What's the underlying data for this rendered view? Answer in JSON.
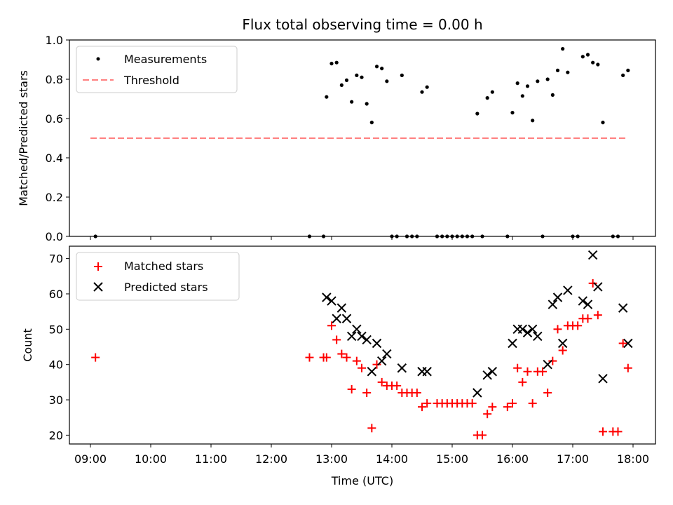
{
  "chart_data": [
    {
      "type": "scatter",
      "title": "Flux total observing time = 0.00 h",
      "xlabel": "",
      "ylabel": "Matched/Predicted stars",
      "ylim": [
        0,
        1.0
      ],
      "yticks": [
        "0.0",
        "0.2",
        "0.4",
        "0.6",
        "0.8",
        "1.0"
      ],
      "legend_position": "top-left",
      "series": [
        {
          "name": "Measurements",
          "marker": "dot",
          "color": "#000000",
          "points": [
            [
              "09:05",
              0.0
            ],
            [
              "12:38",
              0.0
            ],
            [
              "12:52",
              0.0
            ],
            [
              "12:55",
              0.71
            ],
            [
              "13:00",
              0.88
            ],
            [
              "13:05",
              0.885
            ],
            [
              "13:10",
              0.77
            ],
            [
              "13:15",
              0.795
            ],
            [
              "13:20",
              0.685
            ],
            [
              "13:25",
              0.82
            ],
            [
              "13:30",
              0.81
            ],
            [
              "13:35",
              0.675
            ],
            [
              "13:40",
              0.58
            ],
            [
              "13:45",
              0.865
            ],
            [
              "13:50",
              0.855
            ],
            [
              "13:55",
              0.79
            ],
            [
              "14:00",
              0.0
            ],
            [
              "14:05",
              0.0
            ],
            [
              "14:10",
              0.82
            ],
            [
              "14:15",
              0.0
            ],
            [
              "14:20",
              0.0
            ],
            [
              "14:25",
              0.0
            ],
            [
              "14:30",
              0.735
            ],
            [
              "14:35",
              0.76
            ],
            [
              "14:45",
              0.0
            ],
            [
              "14:50",
              0.0
            ],
            [
              "14:55",
              0.0
            ],
            [
              "15:00",
              0.0
            ],
            [
              "15:05",
              0.0
            ],
            [
              "15:10",
              0.0
            ],
            [
              "15:15",
              0.0
            ],
            [
              "15:20",
              0.0
            ],
            [
              "15:25",
              0.625
            ],
            [
              "15:30",
              0.0
            ],
            [
              "15:35",
              0.705
            ],
            [
              "15:40",
              0.735
            ],
            [
              "15:55",
              0.0
            ],
            [
              "16:00",
              0.63
            ],
            [
              "16:05",
              0.78
            ],
            [
              "16:10",
              0.715
            ],
            [
              "16:15",
              0.765
            ],
            [
              "16:20",
              0.59
            ],
            [
              "16:25",
              0.79
            ],
            [
              "16:30",
              0.0
            ],
            [
              "16:35",
              0.8
            ],
            [
              "16:40",
              0.72
            ],
            [
              "16:45",
              0.845
            ],
            [
              "16:50",
              0.955
            ],
            [
              "16:55",
              0.835
            ],
            [
              "17:00",
              0.0
            ],
            [
              "17:05",
              0.0
            ],
            [
              "17:10",
              0.915
            ],
            [
              "17:15",
              0.925
            ],
            [
              "17:20",
              0.885
            ],
            [
              "17:25",
              0.875
            ],
            [
              "17:30",
              0.58
            ],
            [
              "17:40",
              0.0
            ],
            [
              "17:45",
              0.0
            ],
            [
              "17:50",
              0.82
            ],
            [
              "17:55",
              0.845
            ]
          ]
        },
        {
          "name": "Threshold",
          "marker": "dashed-line",
          "color": "#ff8080",
          "points": [
            [
              "09:00",
              0.5
            ],
            [
              "17:55",
              0.5
            ]
          ]
        }
      ]
    },
    {
      "type": "scatter",
      "title": "",
      "xlabel": "Time (UTC)",
      "ylabel": "Count",
      "ylim": [
        17.5,
        73.5
      ],
      "yticks": [
        "20",
        "30",
        "40",
        "50",
        "60",
        "70"
      ],
      "xticks": [
        "09:00",
        "10:00",
        "11:00",
        "12:00",
        "13:00",
        "14:00",
        "15:00",
        "16:00",
        "17:00",
        "18:00"
      ],
      "legend_position": "top-left",
      "series": [
        {
          "name": "Matched stars",
          "marker": "plus",
          "color": "#ff0000",
          "points": [
            [
              "09:05",
              42
            ],
            [
              "12:38",
              42
            ],
            [
              "12:52",
              42
            ],
            [
              "12:55",
              42
            ],
            [
              "13:00",
              51
            ],
            [
              "13:05",
              47
            ],
            [
              "13:10",
              43
            ],
            [
              "13:15",
              42
            ],
            [
              "13:20",
              33
            ],
            [
              "13:25",
              41
            ],
            [
              "13:30",
              39
            ],
            [
              "13:35",
              32
            ],
            [
              "13:40",
              22
            ],
            [
              "13:45",
              40
            ],
            [
              "13:50",
              35
            ],
            [
              "13:55",
              34
            ],
            [
              "14:00",
              34
            ],
            [
              "14:05",
              34
            ],
            [
              "14:10",
              32
            ],
            [
              "14:15",
              32
            ],
            [
              "14:20",
              32
            ],
            [
              "14:25",
              32
            ],
            [
              "14:30",
              28
            ],
            [
              "14:35",
              29
            ],
            [
              "14:45",
              29
            ],
            [
              "14:50",
              29
            ],
            [
              "14:55",
              29
            ],
            [
              "15:00",
              29
            ],
            [
              "15:05",
              29
            ],
            [
              "15:10",
              29
            ],
            [
              "15:15",
              29
            ],
            [
              "15:20",
              29
            ],
            [
              "15:25",
              20
            ],
            [
              "15:30",
              20
            ],
            [
              "15:35",
              26
            ],
            [
              "15:40",
              28
            ],
            [
              "15:55",
              28
            ],
            [
              "16:00",
              29
            ],
            [
              "16:05",
              39
            ],
            [
              "16:10",
              35
            ],
            [
              "16:15",
              38
            ],
            [
              "16:20",
              29
            ],
            [
              "16:25",
              38
            ],
            [
              "16:30",
              38
            ],
            [
              "16:35",
              32
            ],
            [
              "16:40",
              41
            ],
            [
              "16:45",
              50
            ],
            [
              "16:50",
              44
            ],
            [
              "16:55",
              51
            ],
            [
              "17:00",
              51
            ],
            [
              "17:05",
              51
            ],
            [
              "17:10",
              53
            ],
            [
              "17:15",
              53
            ],
            [
              "17:20",
              63
            ],
            [
              "17:25",
              54
            ],
            [
              "17:30",
              21
            ],
            [
              "17:40",
              21
            ],
            [
              "17:45",
              21
            ],
            [
              "17:50",
              46
            ],
            [
              "17:55",
              39
            ]
          ]
        },
        {
          "name": "Predicted stars",
          "marker": "x",
          "color": "#000000",
          "points": [
            [
              "12:55",
              59
            ],
            [
              "13:00",
              58
            ],
            [
              "13:05",
              53
            ],
            [
              "13:10",
              56
            ],
            [
              "13:15",
              53
            ],
            [
              "13:20",
              48
            ],
            [
              "13:25",
              50
            ],
            [
              "13:30",
              48
            ],
            [
              "13:35",
              47
            ],
            [
              "13:40",
              38
            ],
            [
              "13:45",
              46
            ],
            [
              "13:50",
              41
            ],
            [
              "13:55",
              43
            ],
            [
              "14:10",
              39
            ],
            [
              "14:30",
              38
            ],
            [
              "14:35",
              38
            ],
            [
              "15:25",
              32
            ],
            [
              "15:35",
              37
            ],
            [
              "15:40",
              38
            ],
            [
              "16:00",
              46
            ],
            [
              "16:05",
              50
            ],
            [
              "16:10",
              50
            ],
            [
              "16:15",
              49
            ],
            [
              "16:20",
              50
            ],
            [
              "16:25",
              48
            ],
            [
              "16:35",
              40
            ],
            [
              "16:40",
              57
            ],
            [
              "16:45",
              59
            ],
            [
              "16:50",
              46
            ],
            [
              "16:55",
              61
            ],
            [
              "17:10",
              58
            ],
            [
              "17:15",
              57
            ],
            [
              "17:20",
              71
            ],
            [
              "17:25",
              62
            ],
            [
              "17:30",
              36
            ],
            [
              "17:50",
              56
            ],
            [
              "17:55",
              46
            ]
          ]
        }
      ]
    }
  ]
}
